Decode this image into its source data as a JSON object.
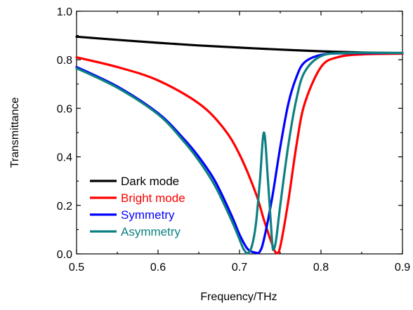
{
  "chart_data": {
    "type": "line",
    "xlabel": "Frequency/THz",
    "ylabel": "Transmittance",
    "xlim": [
      0.5,
      0.9
    ],
    "ylim": [
      0.0,
      1.0
    ],
    "xticks": [
      0.5,
      0.6,
      0.7,
      0.8,
      0.9
    ],
    "xtick_labels": [
      "0.5",
      "0.6",
      "0.7",
      "0.8",
      "0.9"
    ],
    "yticks": [
      0.0,
      0.2,
      0.4,
      0.6,
      0.8,
      1.0
    ],
    "ytick_labels": [
      "0.0",
      "0.2",
      "0.4",
      "0.6",
      "0.8",
      "1.0"
    ],
    "grid": false,
    "legend_position": "bottom-left",
    "series": [
      {
        "name": "Dark mode",
        "color": "#000000",
        "x": [
          0.5,
          0.55,
          0.6,
          0.65,
          0.7,
          0.75,
          0.8,
          0.85,
          0.9
        ],
        "y": [
          0.895,
          0.882,
          0.87,
          0.859,
          0.85,
          0.842,
          0.835,
          0.83,
          0.827
        ]
      },
      {
        "name": "Bright mode",
        "color": "#ff0000",
        "x": [
          0.5,
          0.55,
          0.6,
          0.65,
          0.68,
          0.7,
          0.72,
          0.73,
          0.74,
          0.745,
          0.75,
          0.76,
          0.77,
          0.78,
          0.8,
          0.82,
          0.85,
          0.9
        ],
        "y": [
          0.81,
          0.77,
          0.715,
          0.62,
          0.52,
          0.41,
          0.25,
          0.14,
          0.04,
          0.005,
          0.03,
          0.22,
          0.45,
          0.62,
          0.77,
          0.81,
          0.822,
          0.825
        ]
      },
      {
        "name": "Symmetry",
        "color": "#0000ff",
        "x": [
          0.5,
          0.55,
          0.6,
          0.63,
          0.65,
          0.67,
          0.69,
          0.7,
          0.71,
          0.72,
          0.725,
          0.73,
          0.74,
          0.75,
          0.76,
          0.77,
          0.78,
          0.8,
          0.83,
          0.9
        ],
        "y": [
          0.77,
          0.69,
          0.58,
          0.48,
          0.4,
          0.3,
          0.16,
          0.08,
          0.02,
          0.005,
          0.01,
          0.06,
          0.23,
          0.44,
          0.62,
          0.73,
          0.79,
          0.82,
          0.827,
          0.828
        ]
      },
      {
        "name": "Asymmetry",
        "color": "#0e8080",
        "x": [
          0.5,
          0.55,
          0.6,
          0.63,
          0.65,
          0.67,
          0.69,
          0.7,
          0.705,
          0.71,
          0.715,
          0.72,
          0.725,
          0.73,
          0.735,
          0.74,
          0.742,
          0.745,
          0.75,
          0.76,
          0.77,
          0.78,
          0.8,
          0.83,
          0.9
        ],
        "y": [
          0.765,
          0.685,
          0.575,
          0.47,
          0.385,
          0.28,
          0.14,
          0.06,
          0.02,
          0.003,
          0.03,
          0.12,
          0.3,
          0.5,
          0.3,
          0.05,
          0.02,
          0.06,
          0.2,
          0.45,
          0.64,
          0.75,
          0.815,
          0.828,
          0.828
        ]
      }
    ]
  }
}
